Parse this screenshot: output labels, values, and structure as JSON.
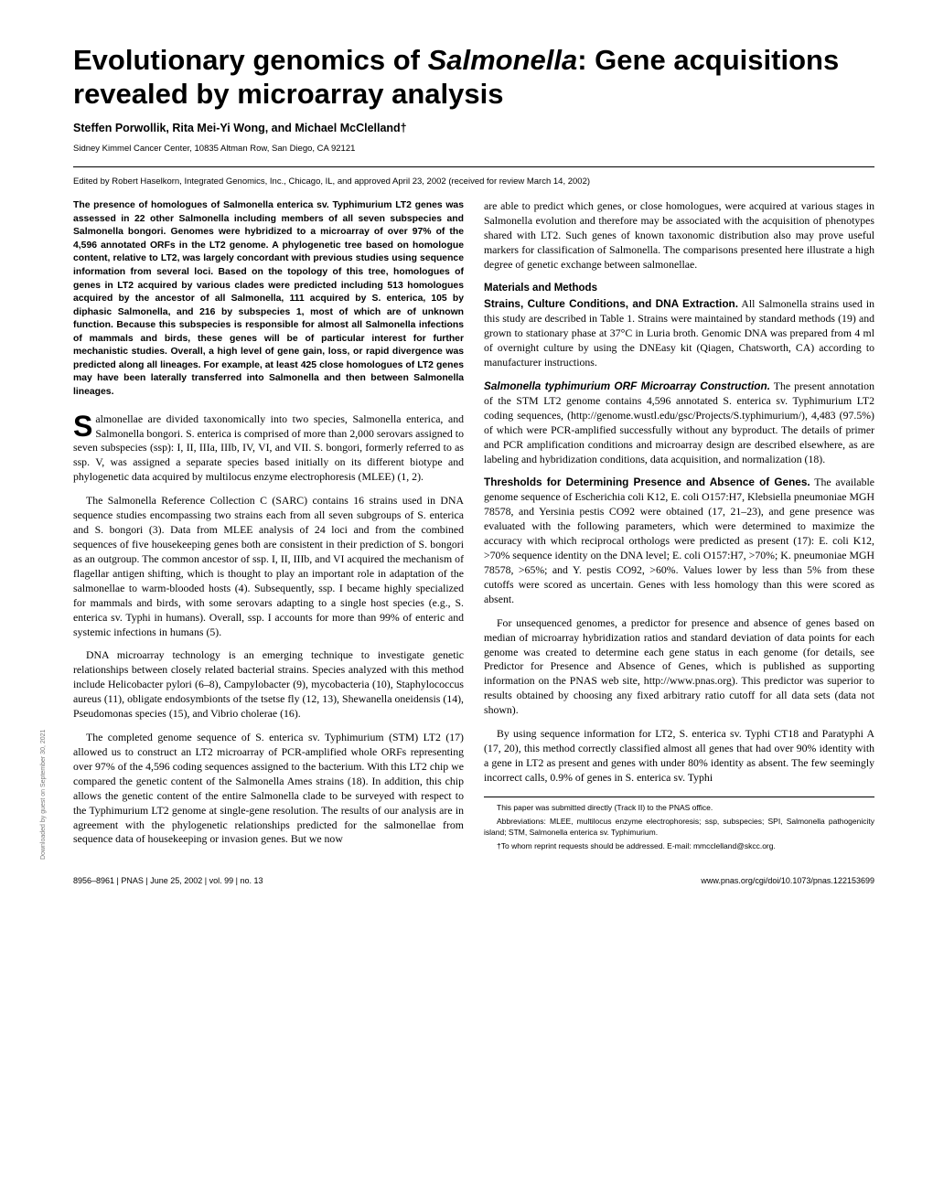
{
  "title": "Evolutionary genomics of Salmonella: Gene acquisitions revealed by microarray analysis",
  "authors": "Steffen Porwollik, Rita Mei-Yi Wong, and Michael McClelland†",
  "affiliation": "Sidney Kimmel Cancer Center, 10835 Altman Row, San Diego, CA 92121",
  "edited_by": "Edited by Robert Haselkorn, Integrated Genomics, Inc., Chicago, IL, and approved April 23, 2002 (received for review March 14, 2002)",
  "abstract": "The presence of homologues of Salmonella enterica sv. Typhimurium LT2 genes was assessed in 22 other Salmonella including members of all seven subspecies and Salmonella bongori. Genomes were hybridized to a microarray of over 97% of the 4,596 annotated ORFs in the LT2 genome. A phylogenetic tree based on homologue content, relative to LT2, was largely concordant with previous studies using sequence information from several loci. Based on the topology of this tree, homologues of genes in LT2 acquired by various clades were predicted including 513 homologues acquired by the ancestor of all Salmonella, 111 acquired by S. enterica, 105 by diphasic Salmonella, and 216 by subspecies 1, most of which are of unknown function. Because this subspecies is responsible for almost all Salmonella infections of mammals and birds, these genes will be of particular interest for further mechanistic studies. Overall, a high level of gene gain, loss, or rapid divergence was predicted along all lineages. For example, at least 425 close homologues of LT2 genes may have been laterally transferred into Salmonella and then between Salmonella lineages.",
  "p1a": "almonellae are divided taxonomically into two species, Salmonella enterica, and Salmonella bongori. S. enterica is comprised of more than 2,000 serovars assigned to seven subspecies (ssp): I, II, IIIa, IIIb, IV, VI, and VII. S. bongori, formerly referred to as ssp. V, was assigned a separate species based initially on its different biotype and phylogenetic data acquired by multilocus enzyme electrophoresis (MLEE) (1, 2).",
  "p2": "The Salmonella Reference Collection C (SARC) contains 16 strains used in DNA sequence studies encompassing two strains each from all seven subgroups of S. enterica and S. bongori (3). Data from MLEE analysis of 24 loci and from the combined sequences of five housekeeping genes both are consistent in their prediction of S. bongori as an outgroup. The common ancestor of ssp. I, II, IIIb, and VI acquired the mechanism of flagellar antigen shifting, which is thought to play an important role in adaptation of the salmonellae to warm-blooded hosts (4). Subsequently, ssp. I became highly specialized for mammals and birds, with some serovars adapting to a single host species (e.g., S. enterica sv. Typhi in humans). Overall, ssp. I accounts for more than 99% of enteric and systemic infections in humans (5).",
  "p3": "DNA microarray technology is an emerging technique to investigate genetic relationships between closely related bacterial strains. Species analyzed with this method include Helicobacter pylori (6–8), Campylobacter (9), mycobacteria (10), Staphylococcus aureus (11), obligate endosymbionts of the tsetse fly (12, 13), Shewanella oneidensis (14), Pseudomonas species (15), and Vibrio cholerae (16).",
  "p4": "The completed genome sequence of S. enterica sv. Typhimurium (STM) LT2 (17) allowed us to construct an LT2 microarray of PCR-amplified whole ORFs representing over 97% of the 4,596 coding sequences assigned to the bacterium. With this LT2 chip we compared the genetic content of the Salmonella Ames strains (18). In addition, this chip allows the genetic content of the entire Salmonella clade to be surveyed with respect to the Typhimurium LT2 genome at single-gene resolution. The results of our analysis are in agreement with the phylogenetic relationships predicted for the salmonellae from sequence data of housekeeping or invasion genes. But we now",
  "p5": "are able to predict which genes, or close homologues, were acquired at various stages in Salmonella evolution and therefore may be associated with the acquisition of phenotypes shared with LT2. Such genes of known taxonomic distribution also may prove useful markers for classification of Salmonella. The comparisons presented here illustrate a high degree of genetic exchange between salmonellae.",
  "mm_head": "Materials and Methods",
  "mm1_head": "Strains, Culture Conditions, and DNA Extraction.",
  "mm1": " All Salmonella strains used in this study are described in Table 1. Strains were maintained by standard methods (19) and grown to stationary phase at 37°C in Luria broth. Genomic DNA was prepared from 4 ml of overnight culture by using the DNEasy kit (Qiagen, Chatsworth, CA) according to manufacturer instructions.",
  "mm2_head": "Salmonella typhimurium ORF Microarray Construction.",
  "mm2": " The present annotation of the STM LT2 genome contains 4,596 annotated S. enterica sv. Typhimurium LT2 coding sequences, (http://genome.wustl.edu/gsc/Projects/S.typhimurium/), 4,483 (97.5%) of which were PCR-amplified successfully without any byproduct. The details of primer and PCR amplification conditions and microarray design are described elsewhere, as are labeling and hybridization conditions, data acquisition, and normalization (18).",
  "mm3_head": "Thresholds for Determining Presence and Absence of Genes.",
  "mm3": " The available genome sequence of Escherichia coli K12, E. coli O157:H7, Klebsiella pneumoniae MGH 78578, and Yersinia pestis CO92 were obtained (17, 21–23), and gene presence was evaluated with the following parameters, which were determined to maximize the accuracy with which reciprocal orthologs were predicted as present (17): E. coli K12, >70% sequence identity on the DNA level; E. coli O157:H7, >70%; K. pneumoniae MGH 78578, >65%; and Y. pestis CO92, >60%. Values lower by less than 5% from these cutoffs were scored as uncertain. Genes with less homology than this were scored as absent.",
  "mm3b": "For unsequenced genomes, a predictor for presence and absence of genes based on median of microarray hybridization ratios and standard deviation of data points for each genome was created to determine each gene status in each genome (for details, see Predictor for Presence and Absence of Genes, which is published as supporting information on the PNAS web site, http://www.pnas.org). This predictor was superior to results obtained by choosing any fixed arbitrary ratio cutoff for all data sets (data not shown).",
  "mm3c": "By using sequence information for LT2, S. enterica sv. Typhi CT18 and Paratyphi A (17, 20), this method correctly classified almost all genes that had over 90% identity with a gene in LT2 as present and genes with under 80% identity as absent. The few seemingly incorrect calls, 0.9% of genes in S. enterica sv. Typhi",
  "fn1": "This paper was submitted directly (Track II) to the PNAS office.",
  "fn2": "Abbreviations: MLEE, multilocus enzyme electrophoresis; ssp, subspecies; SPI, Salmonella pathogenicity island; STM, Salmonella enterica sv. Typhimurium.",
  "fn3": "†To whom reprint requests should be addressed. E-mail: mmcclelland@skcc.org.",
  "footer_left": "8956–8961  |  PNAS  |  June 25, 2002  |  vol. 99  |  no. 13",
  "footer_right": "www.pnas.org/cgi/doi/10.1073/pnas.122153699",
  "sideways": "Downloaded by guest on September 30, 2021"
}
